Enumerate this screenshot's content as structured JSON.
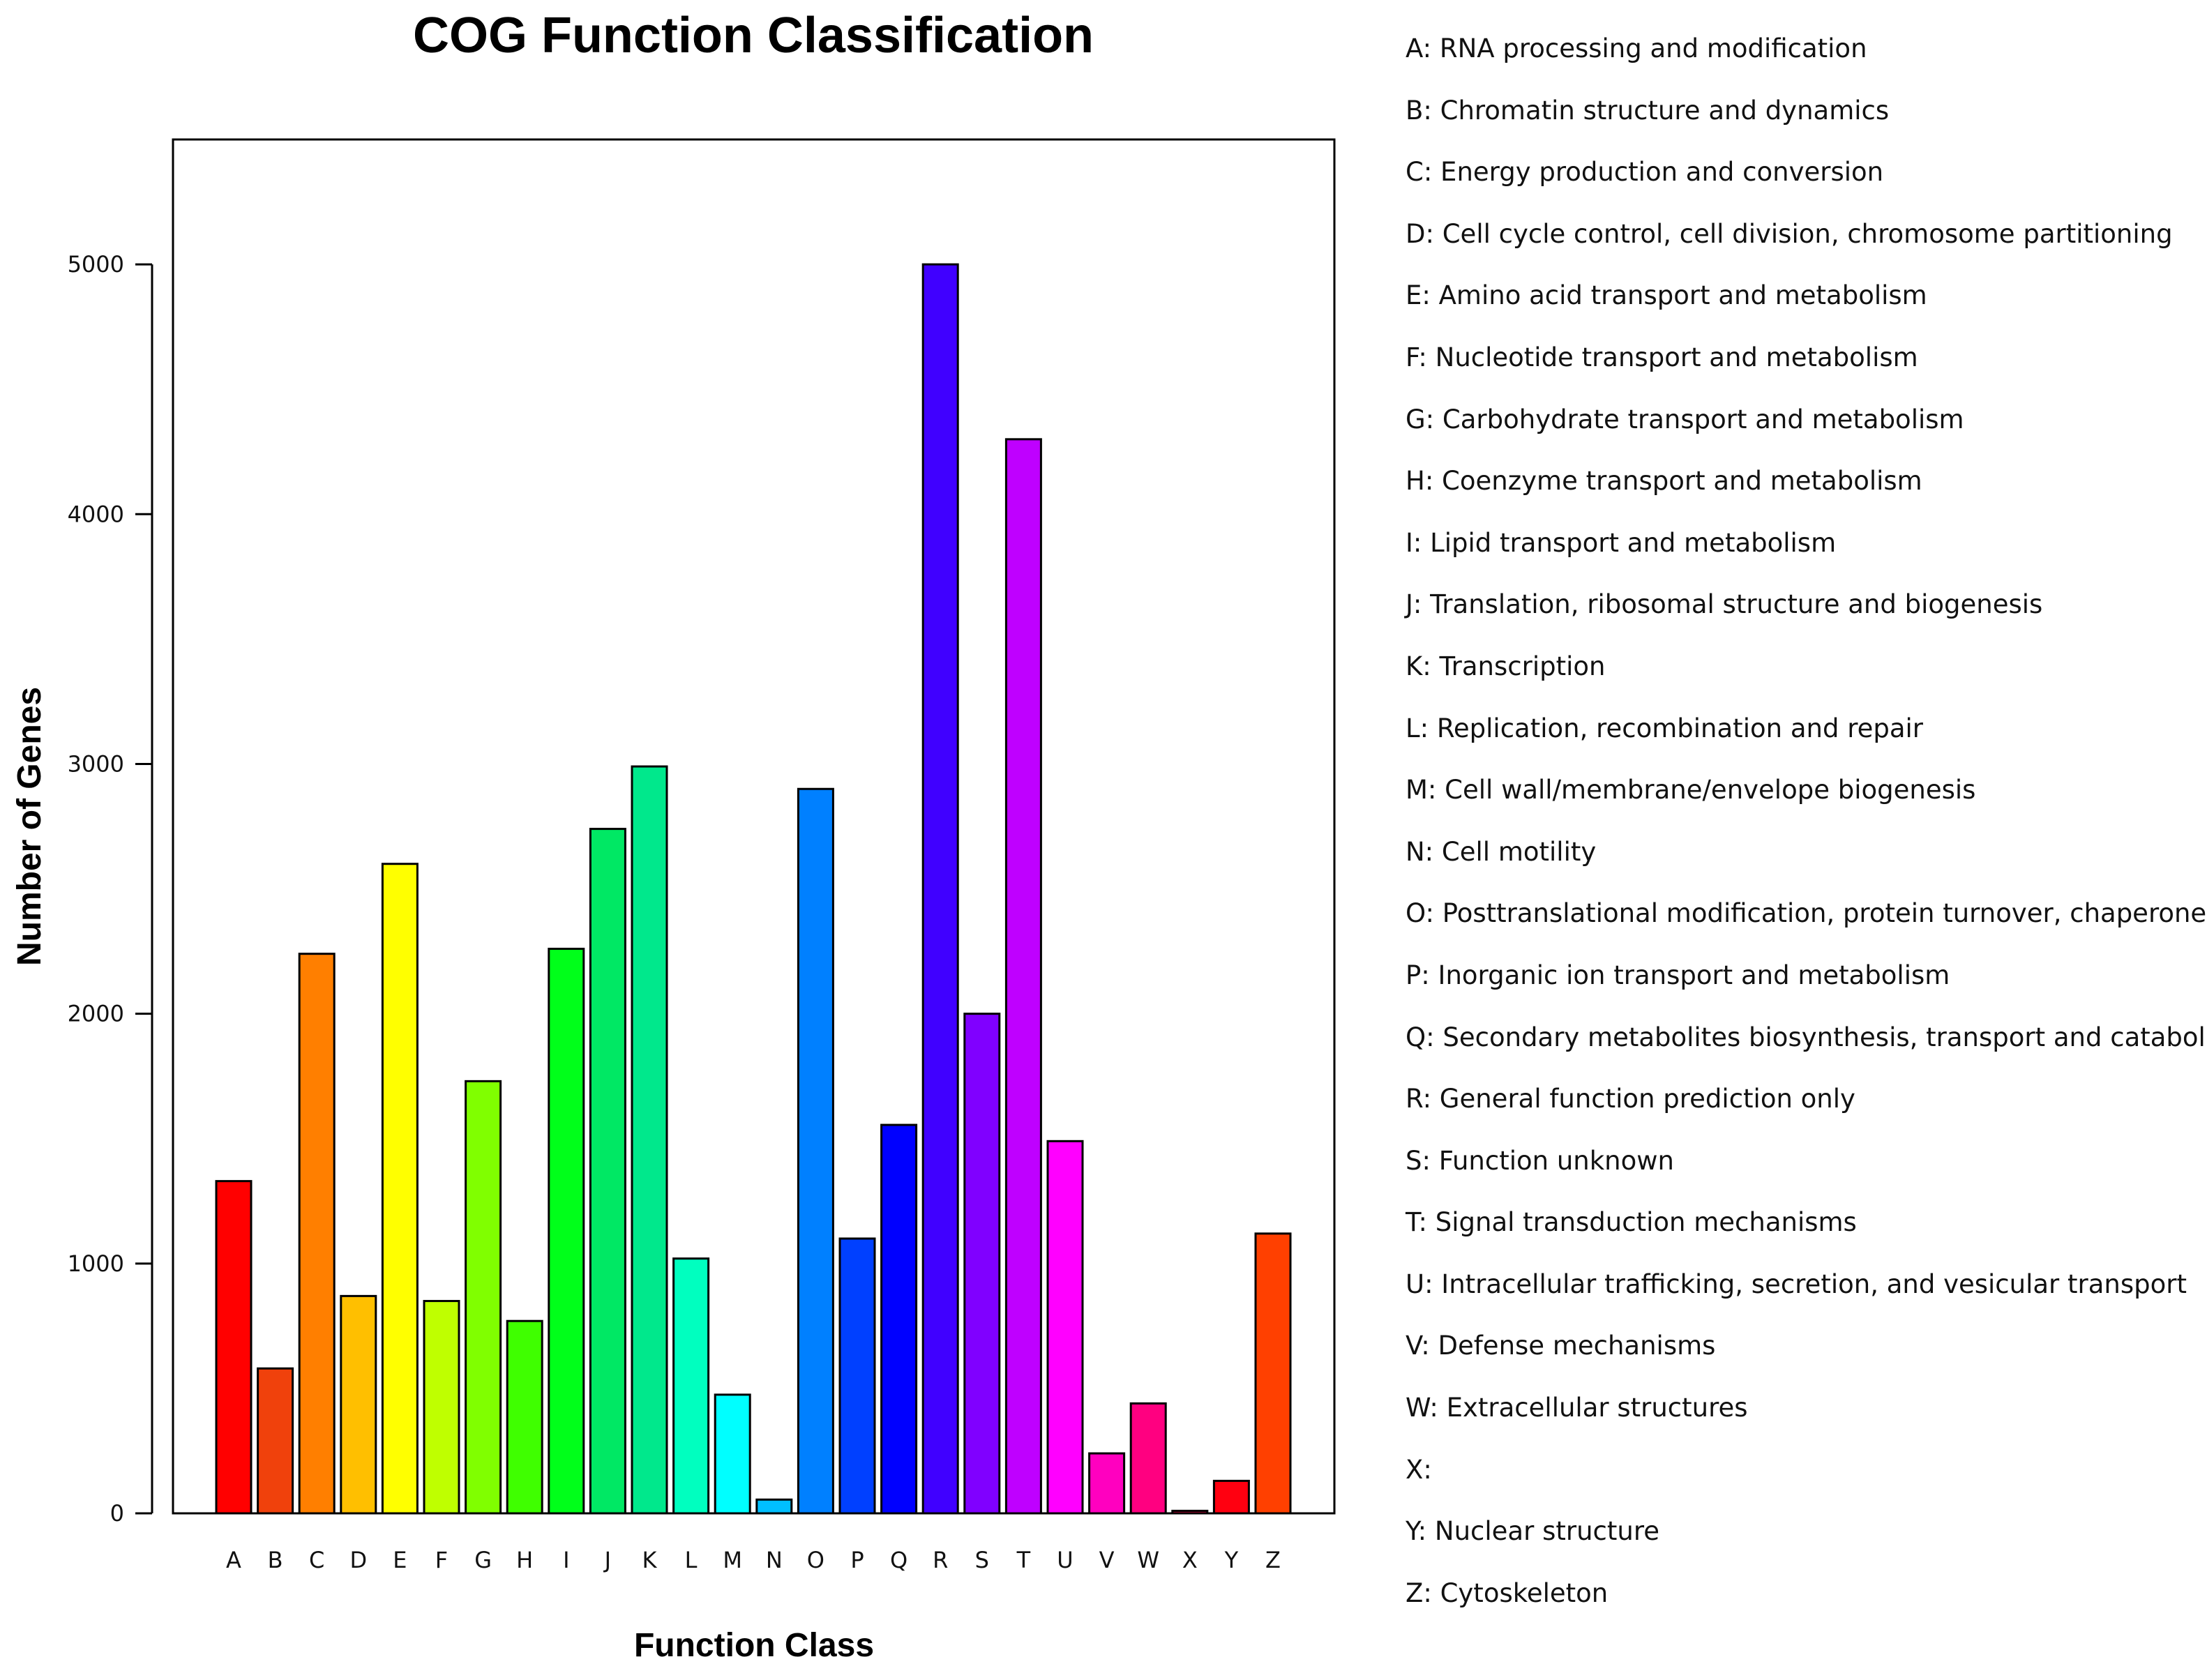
{
  "chart_data": {
    "type": "bar",
    "title": "COG Function Classification",
    "xlabel": "Function Class",
    "ylabel": "Number of Genes",
    "ylim": [
      0,
      5500
    ],
    "yticks": [
      0,
      1000,
      2000,
      3000,
      4000,
      5000
    ],
    "categories": [
      "A",
      "B",
      "C",
      "D",
      "E",
      "F",
      "G",
      "H",
      "I",
      "J",
      "K",
      "L",
      "M",
      "N",
      "O",
      "P",
      "Q",
      "R",
      "S",
      "T",
      "U",
      "V",
      "W",
      "X",
      "Y",
      "Z"
    ],
    "values": [
      1330,
      580,
      2240,
      870,
      2600,
      850,
      1730,
      770,
      2260,
      2740,
      2990,
      1020,
      475,
      55,
      2900,
      1100,
      1555,
      5000,
      2000,
      4300,
      1490,
      240,
      440,
      10,
      130,
      1120
    ],
    "colors": [
      "#ff0000",
      "#f0410c",
      "#ff7f00",
      "#ffbf00",
      "#ffff00",
      "#bfff00",
      "#80ff00",
      "#3fff00",
      "#00ff1a",
      "#00e864",
      "#00e88c",
      "#00ffbf",
      "#00ffff",
      "#00bfff",
      "#0080ff",
      "#0040ff",
      "#0000ff",
      "#4000ff",
      "#8000ff",
      "#bf00ff",
      "#ff00ff",
      "#ff00bf",
      "#ff0080",
      "#ff0040",
      "#ff0010",
      "#ff4000"
    ],
    "legend": [
      "A: RNA processing and modification",
      "B: Chromatin structure and dynamics",
      "C: Energy production and conversion",
      "D: Cell cycle control, cell division, chromosome partitioning",
      "E: Amino acid transport and metabolism",
      "F: Nucleotide transport and metabolism",
      "G: Carbohydrate transport and metabolism",
      "H: Coenzyme transport and metabolism",
      "I: Lipid transport and metabolism",
      "J: Translation, ribosomal structure and biogenesis",
      "K: Transcription",
      "L: Replication, recombination and repair",
      "M: Cell wall/membrane/envelope biogenesis",
      "N: Cell motility",
      "O: Posttranslational modification, protein turnover, chaperones",
      "P: Inorganic ion transport and metabolism",
      "Q: Secondary metabolites biosynthesis, transport and catabolism",
      "R: General function prediction only",
      "S: Function unknown",
      "T: Signal transduction mechanisms",
      "U: Intracellular trafficking, secretion, and vesicular transport",
      "V: Defense mechanisms",
      "W: Extracellular structures",
      "X:",
      "Y: Nuclear structure",
      "Z: Cytoskeleton"
    ]
  }
}
